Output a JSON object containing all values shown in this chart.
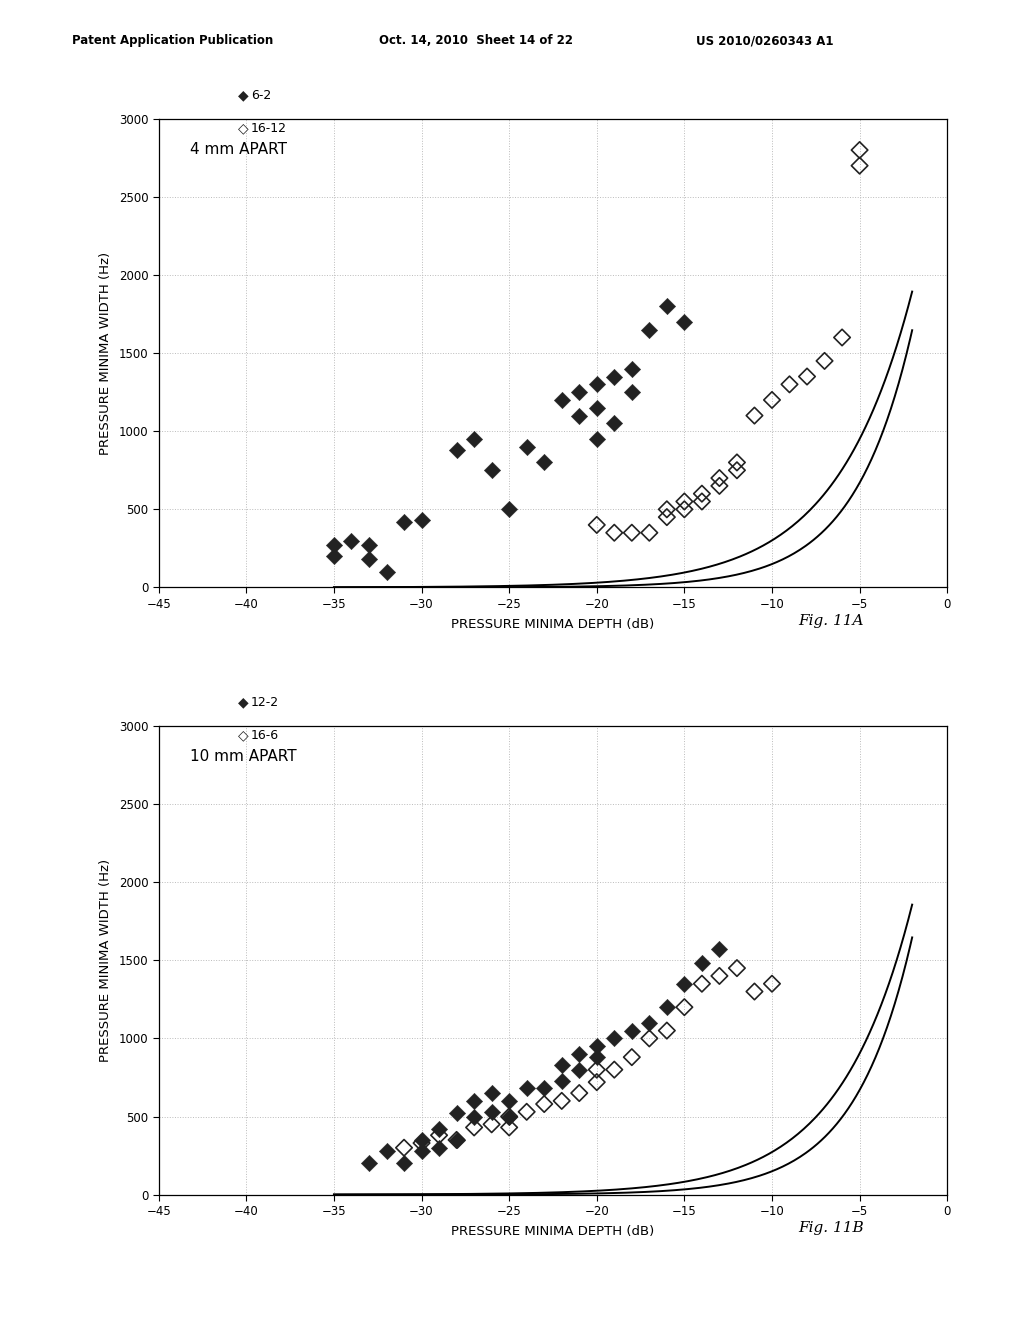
{
  "header_left": "Patent Application Publication",
  "header_center": "Oct. 14, 2010  Sheet 14 of 22",
  "header_right": "US 2010/0260343 A1",
  "fig_A": {
    "title": "4 mm APART",
    "label1": "6-2",
    "label2": "16-12",
    "xlabel": "PRESSURE MINIMA DEPTH (dB)",
    "ylabel": "PRESSURE MINIMA WIDTH (Hz)",
    "xlim": [
      -45,
      0
    ],
    "ylim": [
      0,
      3000
    ],
    "xticks": [
      -45,
      -40,
      -35,
      -30,
      -25,
      -20,
      -15,
      -10,
      -5,
      0
    ],
    "yticks": [
      0,
      500,
      1000,
      1500,
      2000,
      2500,
      3000
    ],
    "figname": "Fig. 11A",
    "series1_x": [
      -35,
      -35,
      -34,
      -33,
      -33,
      -32,
      -31,
      -30,
      -28,
      -27,
      -26,
      -25,
      -24,
      -23,
      -22,
      -21,
      -21,
      -20,
      -20,
      -20,
      -19,
      -19,
      -18,
      -18,
      -17,
      -16,
      -15
    ],
    "series1_y": [
      270,
      200,
      300,
      270,
      180,
      100,
      420,
      430,
      880,
      950,
      750,
      500,
      900,
      800,
      1200,
      1250,
      1100,
      1300,
      1150,
      950,
      1350,
      1050,
      1400,
      1250,
      1650,
      1800,
      1700
    ],
    "series2_x": [
      -20,
      -19,
      -18,
      -17,
      -16,
      -16,
      -15,
      -15,
      -14,
      -14,
      -13,
      -13,
      -12,
      -12,
      -11,
      -10,
      -9,
      -8,
      -7,
      -6,
      -5,
      -5
    ],
    "series2_y": [
      400,
      350,
      350,
      350,
      500,
      450,
      550,
      500,
      550,
      600,
      700,
      650,
      750,
      800,
      1100,
      1200,
      1300,
      1350,
      1450,
      1600,
      2800,
      2700
    ],
    "curve1_a": 3000.0,
    "curve1_b": 0.3,
    "curve1_x0": 0.0,
    "curve2_a": 3000.0,
    "curve2_b": 0.23,
    "curve2_x0": 0.0,
    "curve_xstart": -35,
    "curve_xend": -2
  },
  "fig_B": {
    "title": "10 mm APART",
    "label1": "12-2",
    "label2": "16-6",
    "xlabel": "PRESSURE MINIMA DEPTH (dB)",
    "ylabel": "PRESSURE MINIMA WIDTH (Hz)",
    "xlim": [
      -45,
      0
    ],
    "ylim": [
      0,
      3000
    ],
    "xticks": [
      -45,
      -40,
      -35,
      -30,
      -25,
      -20,
      -15,
      -10,
      -5,
      0
    ],
    "yticks": [
      0,
      500,
      1000,
      1500,
      2000,
      2500,
      3000
    ],
    "figname": "Fig. 11B",
    "series1_x": [
      -33,
      -32,
      -31,
      -30,
      -30,
      -29,
      -29,
      -28,
      -28,
      -27,
      -27,
      -26,
      -26,
      -25,
      -25,
      -24,
      -23,
      -22,
      -22,
      -21,
      -21,
      -20,
      -20,
      -19,
      -18,
      -17,
      -16,
      -15,
      -14,
      -13
    ],
    "series1_y": [
      200,
      280,
      200,
      280,
      350,
      300,
      420,
      350,
      520,
      600,
      500,
      650,
      530,
      600,
      500,
      680,
      680,
      730,
      830,
      900,
      800,
      950,
      880,
      1000,
      1050,
      1100,
      1200,
      1350,
      1480,
      1570
    ],
    "series2_x": [
      -31,
      -30,
      -29,
      -28,
      -27,
      -26,
      -25,
      -25,
      -24,
      -23,
      -22,
      -21,
      -20,
      -20,
      -19,
      -18,
      -17,
      -16,
      -15,
      -14,
      -13,
      -12,
      -11,
      -10
    ],
    "series2_y": [
      300,
      330,
      380,
      350,
      430,
      450,
      430,
      500,
      530,
      580,
      600,
      650,
      720,
      800,
      800,
      880,
      1000,
      1050,
      1200,
      1350,
      1400,
      1450,
      1300,
      1350
    ],
    "curve1_a": 3000.0,
    "curve1_b": 0.3,
    "curve1_x0": 0.0,
    "curve2_a": 3000.0,
    "curve2_b": 0.24,
    "curve2_x0": 0.0,
    "curve_xstart": -35,
    "curve_xend": -2
  },
  "colors": {
    "filled_diamond": "#222222",
    "open_diamond_edge": "#222222",
    "curve": "#000000",
    "background": "#ffffff",
    "text": "#000000",
    "grid": "#bbbbbb"
  },
  "marker_size": 70
}
